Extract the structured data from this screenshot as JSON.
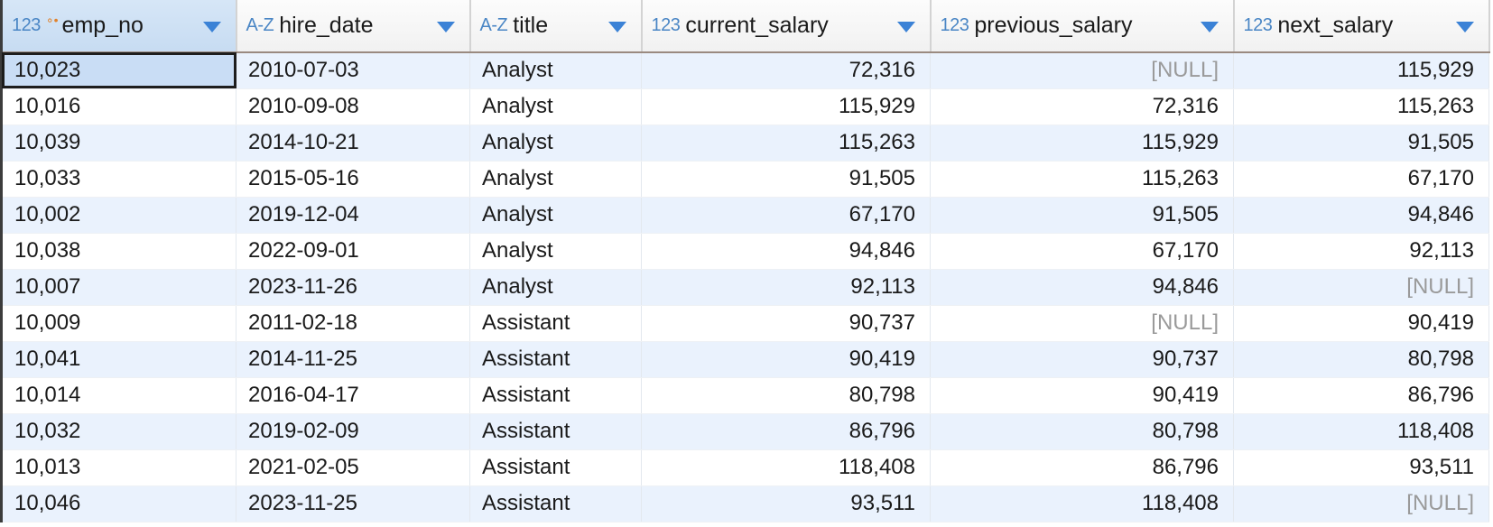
{
  "columns": [
    {
      "name": "emp_no",
      "type_icon": "123",
      "key_icon": "∘•",
      "align": "left"
    },
    {
      "name": "hire_date",
      "type_icon": "A-Z",
      "align": "left"
    },
    {
      "name": "title",
      "type_icon": "A-Z",
      "align": "left"
    },
    {
      "name": "current_salary",
      "type_icon": "123",
      "align": "right"
    },
    {
      "name": "previous_salary",
      "type_icon": "123",
      "align": "right"
    },
    {
      "name": "next_salary",
      "type_icon": "123",
      "align": "right"
    }
  ],
  "null_text": "[NULL]",
  "rows": [
    [
      "10,023",
      "2010-07-03",
      "Analyst",
      "72,316",
      "[NULL]",
      "115,929"
    ],
    [
      "10,016",
      "2010-09-08",
      "Analyst",
      "115,929",
      "72,316",
      "115,263"
    ],
    [
      "10,039",
      "2014-10-21",
      "Analyst",
      "115,263",
      "115,929",
      "91,505"
    ],
    [
      "10,033",
      "2015-05-16",
      "Analyst",
      "91,505",
      "115,263",
      "67,170"
    ],
    [
      "10,002",
      "2019-12-04",
      "Analyst",
      "67,170",
      "91,505",
      "94,846"
    ],
    [
      "10,038",
      "2022-09-01",
      "Analyst",
      "94,846",
      "67,170",
      "92,113"
    ],
    [
      "10,007",
      "2023-11-26",
      "Analyst",
      "92,113",
      "94,846",
      "[NULL]"
    ],
    [
      "10,009",
      "2011-02-18",
      "Assistant",
      "90,737",
      "[NULL]",
      "90,419"
    ],
    [
      "10,041",
      "2014-11-25",
      "Assistant",
      "90,419",
      "90,737",
      "80,798"
    ],
    [
      "10,014",
      "2016-04-17",
      "Assistant",
      "80,798",
      "90,419",
      "86,796"
    ],
    [
      "10,032",
      "2019-02-09",
      "Assistant",
      "86,796",
      "80,798",
      "118,408"
    ],
    [
      "10,013",
      "2021-02-05",
      "Assistant",
      "118,408",
      "86,796",
      "93,511"
    ],
    [
      "10,046",
      "2023-11-25",
      "Assistant",
      "93,511",
      "118,408",
      "[NULL]"
    ]
  ],
  "selected_cell": {
    "row": 0,
    "col": 0
  },
  "colors": {
    "accent": "#3b82d6",
    "row_stripe": "#eaf2fd",
    "selected_cell": "#c9ddf5",
    "null_text": "#9a9a9a",
    "type_icon": "#4a86c5",
    "key_icon": "#e0822c"
  }
}
